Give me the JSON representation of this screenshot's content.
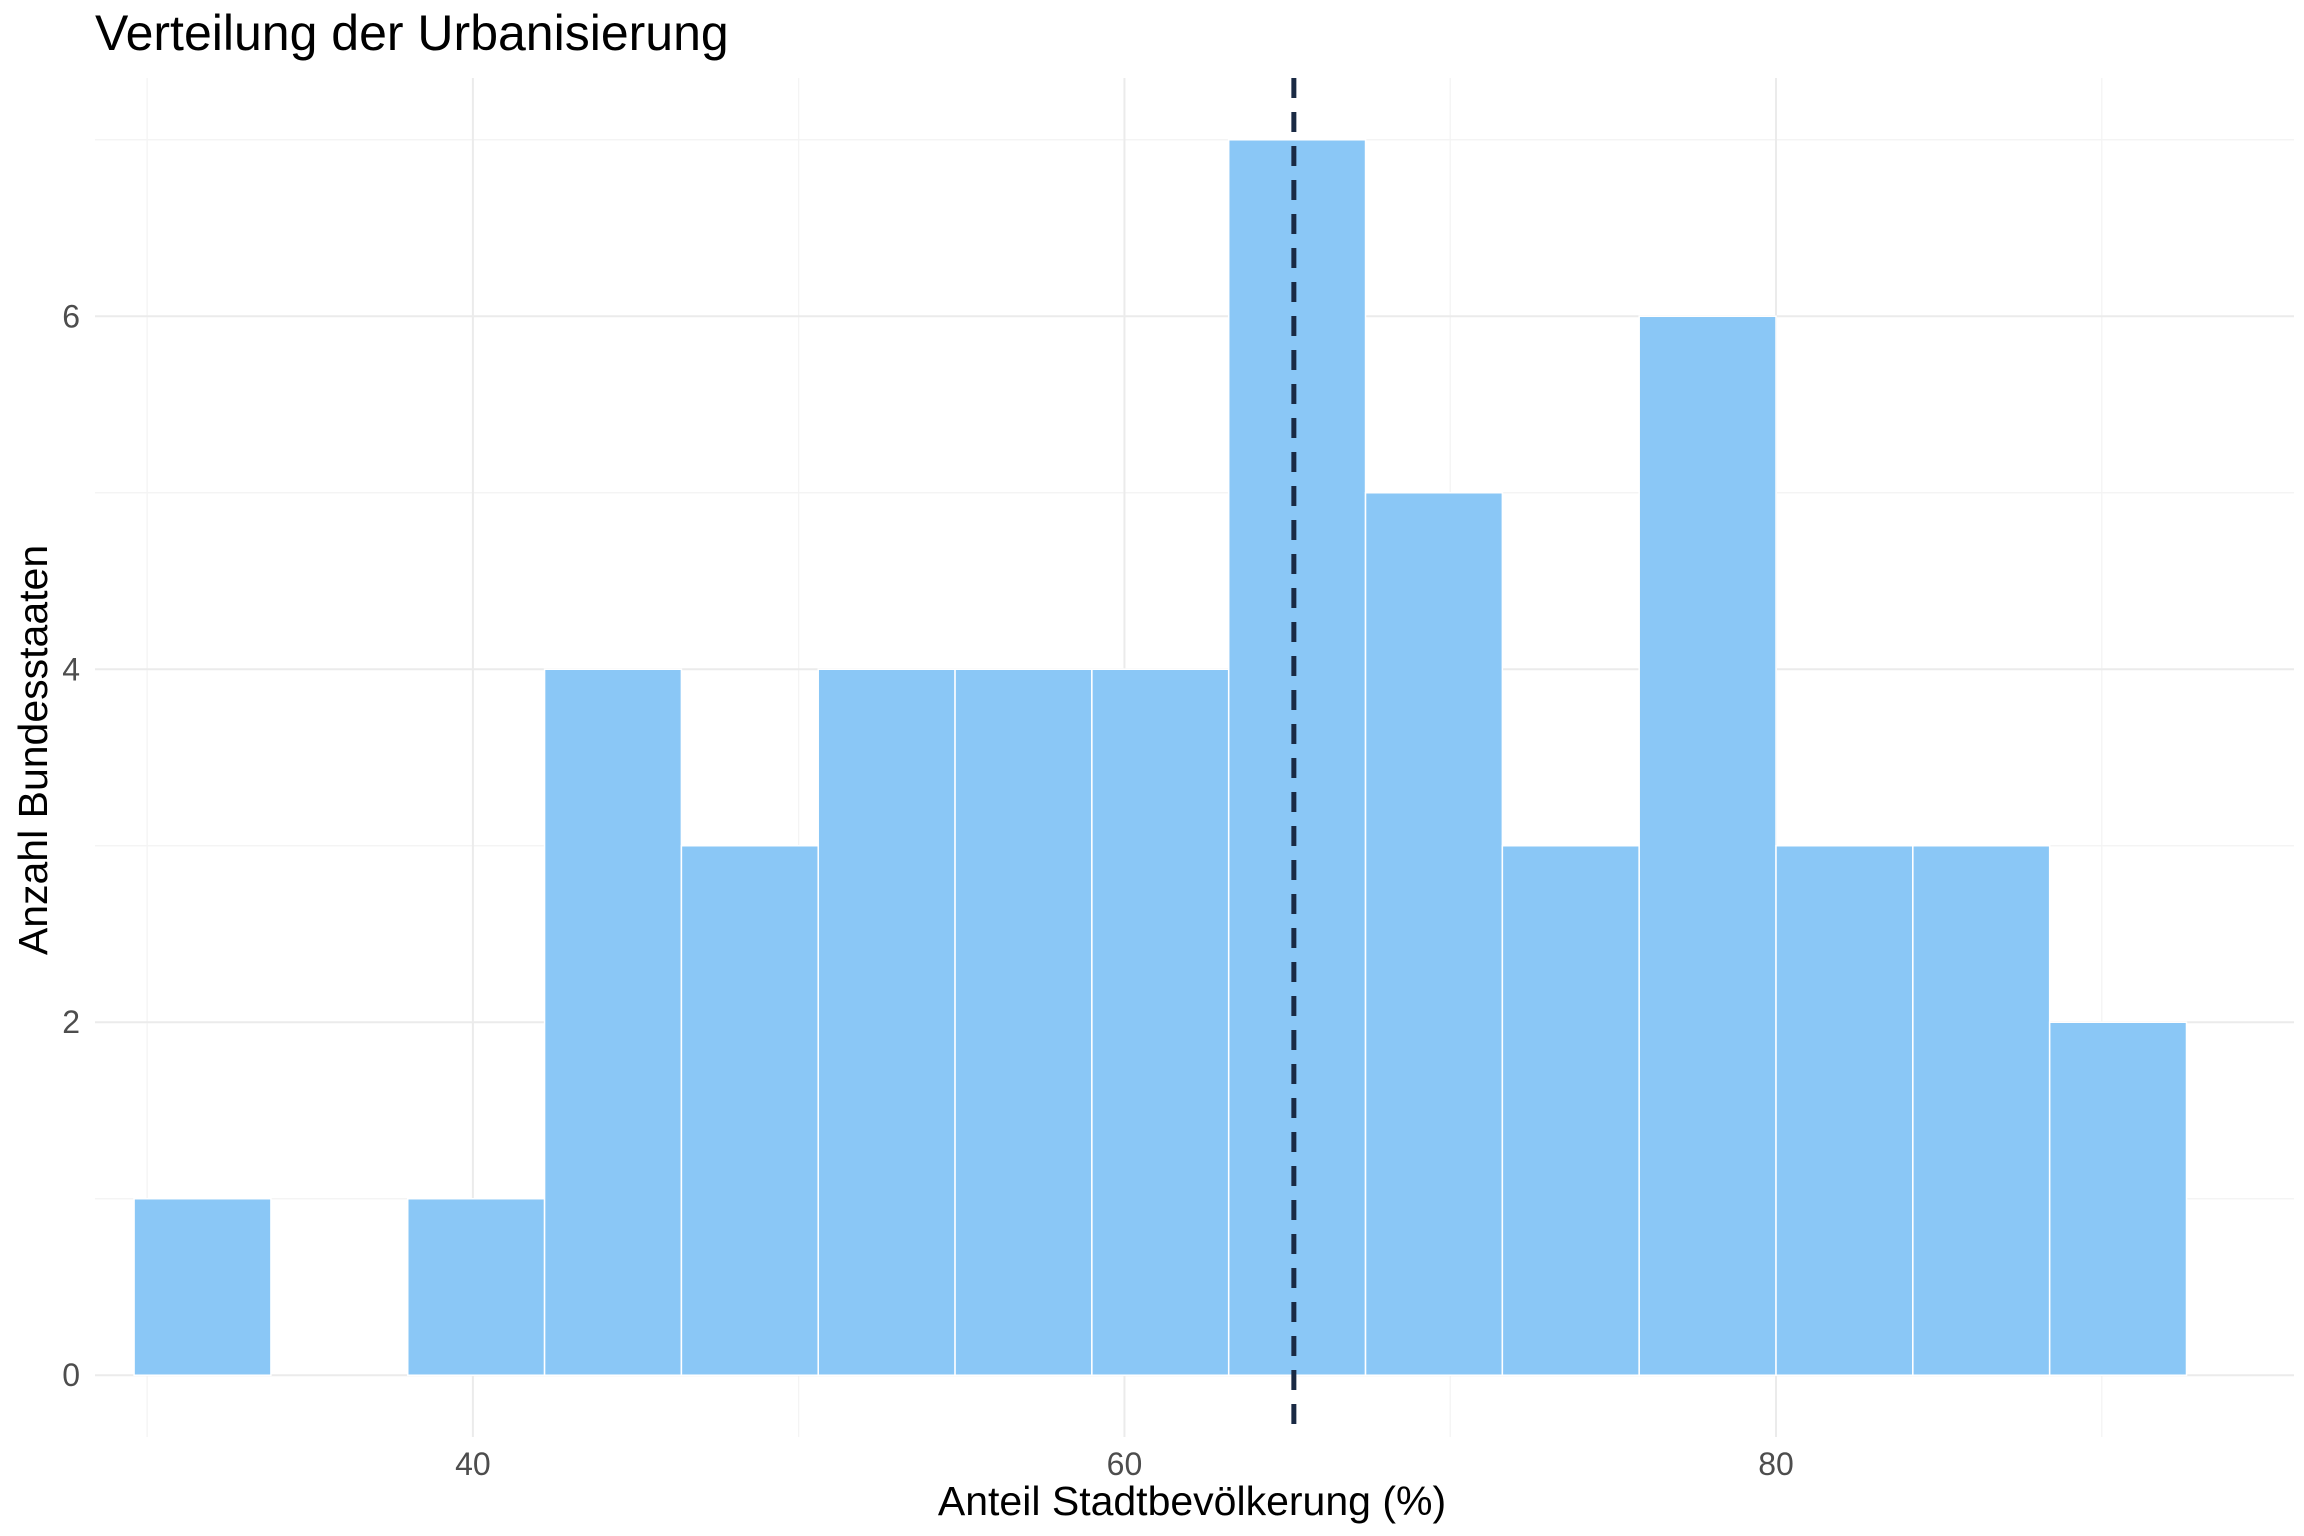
{
  "chart_data": {
    "type": "bar",
    "title": "Verteilung der Urbanisierung",
    "xlabel": "Anteil Stadtbevölkerung (%)",
    "ylabel": "Anzahl Bundesstaaten",
    "xlim": [
      28.4,
      95.9
    ],
    "ylim": [
      -0.35,
      7.35
    ],
    "x_ticks": [
      40,
      60,
      80
    ],
    "y_ticks": [
      0,
      2,
      4,
      6
    ],
    "bin_width": 4.2,
    "bins": [
      {
        "x0": 29.6,
        "x1": 33.8,
        "count": 1
      },
      {
        "x0": 33.8,
        "x1": 38.0,
        "count": 0
      },
      {
        "x0": 38.0,
        "x1": 42.2,
        "count": 1
      },
      {
        "x0": 42.2,
        "x1": 46.4,
        "count": 4
      },
      {
        "x0": 46.4,
        "x1": 50.6,
        "count": 3
      },
      {
        "x0": 50.6,
        "x1": 54.8,
        "count": 4
      },
      {
        "x0": 54.8,
        "x1": 59.0,
        "count": 4
      },
      {
        "x0": 59.0,
        "x1": 63.2,
        "count": 4
      },
      {
        "x0": 63.2,
        "x1": 67.4,
        "count": 7
      },
      {
        "x0": 67.4,
        "x1": 71.6,
        "count": 5
      },
      {
        "x0": 71.6,
        "x1": 75.8,
        "count": 3
      },
      {
        "x0": 75.8,
        "x1": 80.0,
        "count": 6
      },
      {
        "x0": 80.0,
        "x1": 84.2,
        "count": 3
      },
      {
        "x0": 84.2,
        "x1": 88.4,
        "count": 3
      },
      {
        "x0": 88.4,
        "x1": 92.6,
        "count": 2
      }
    ],
    "mean_line": 65.2,
    "colors": {
      "bar_fill": "#8ac7f6",
      "bar_stroke": "#ffffff",
      "mean_line": "#1a2a44"
    },
    "grid": true,
    "legend": "none"
  }
}
